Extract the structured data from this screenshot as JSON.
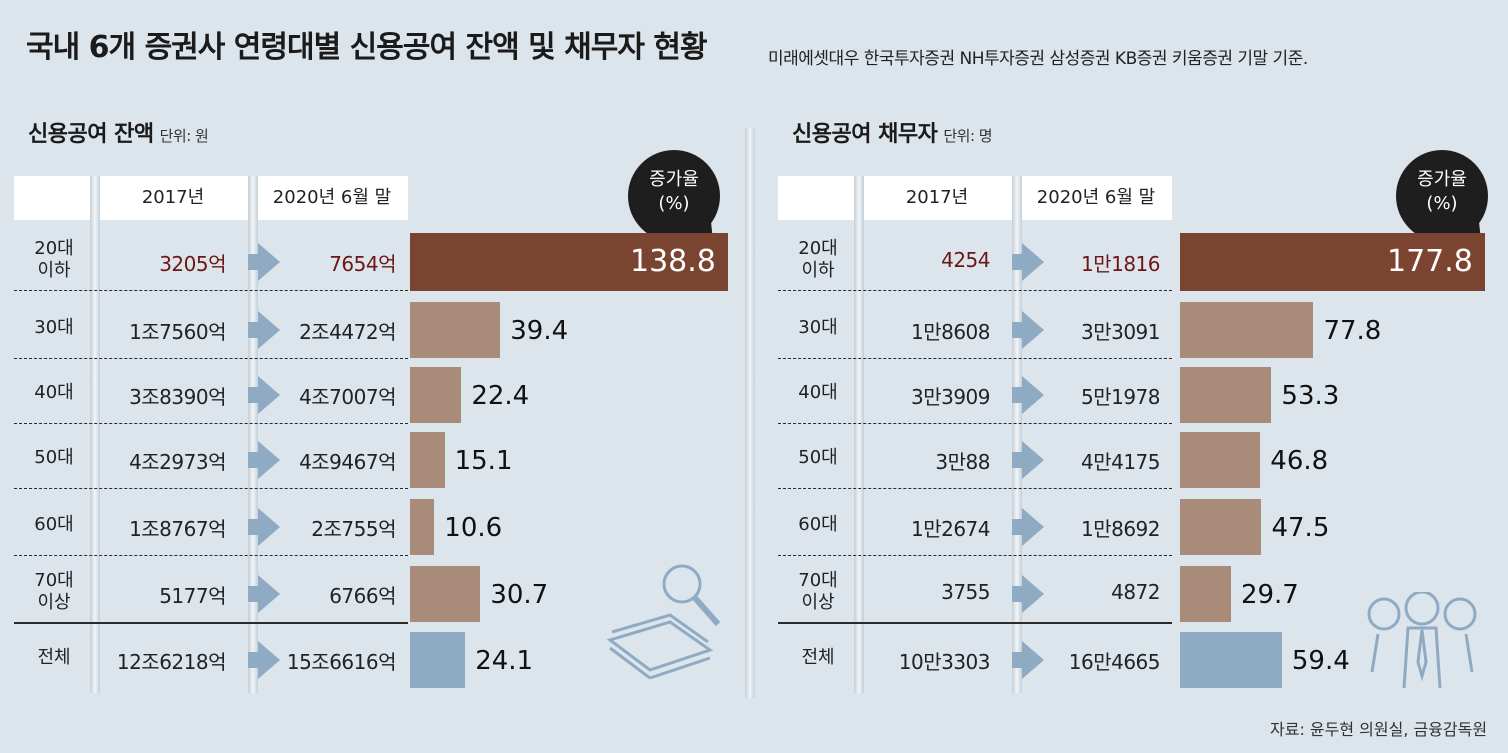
{
  "title": "국내 6개 증권사 연령대별 신용공여 잔액 및 채무자 현황",
  "subtitle": "미래에셋대우 한국투자증권 NH투자증권 삼성증권 KB증권 키움증권 기말 기준.",
  "source": "자료: 윤두현 의원실, 금융감독원",
  "colors": {
    "top_bar": "#7b4430",
    "age_bar": "#a88b79",
    "total_bar": "#8fabc4",
    "arrow": "#8fabc4",
    "background": "#dde5ec"
  },
  "bubble": {
    "line1": "증가율",
    "line2": "(%)"
  },
  "chart_data": [
    {
      "type": "bar",
      "title": "신용공여 잔액",
      "unit": "단위: 원",
      "columns": [
        "2017년",
        "2020년 6월 말"
      ],
      "categories": [
        "20대 이하",
        "30대",
        "40대",
        "50대",
        "60대",
        "70대 이상",
        "전체"
      ],
      "rows": [
        {
          "label_lines": [
            "20대",
            "이하"
          ],
          "v2017": "3205억",
          "v2020": "7654억",
          "growth": 138.8,
          "growth_text": "138.8",
          "highlight": true
        },
        {
          "label_lines": [
            "30대"
          ],
          "v2017": "1조7560억",
          "v2020": "2조4472억",
          "growth": 39.4,
          "growth_text": "39.4",
          "highlight": false
        },
        {
          "label_lines": [
            "40대"
          ],
          "v2017": "3조8390억",
          "v2020": "4조7007억",
          "growth": 22.4,
          "growth_text": "22.4",
          "highlight": false
        },
        {
          "label_lines": [
            "50대"
          ],
          "v2017": "4조2973억",
          "v2020": "4조9467억",
          "growth": 15.1,
          "growth_text": "15.1",
          "highlight": false
        },
        {
          "label_lines": [
            "60대"
          ],
          "v2017": "1조8767억",
          "v2020": "2조755억",
          "growth": 10.6,
          "growth_text": "10.6",
          "highlight": false
        },
        {
          "label_lines": [
            "70대",
            "이상"
          ],
          "v2017": "5177억",
          "v2020": "6766억",
          "growth": 30.7,
          "growth_text": "30.7",
          "highlight": false
        },
        {
          "label_lines": [
            "전체"
          ],
          "v2017": "12조6218억",
          "v2020": "15조6616억",
          "growth": 24.1,
          "growth_text": "24.1",
          "total": true
        }
      ],
      "series": [
        {
          "name": "증가율(%)",
          "values": [
            138.8,
            39.4,
            22.4,
            15.1,
            10.6,
            30.7,
            24.1
          ]
        }
      ],
      "xlim": [
        0,
        138.8
      ]
    },
    {
      "type": "bar",
      "title": "신용공여 채무자",
      "unit": "단위: 명",
      "columns": [
        "2017년",
        "2020년 6월 말"
      ],
      "categories": [
        "20대 이하",
        "30대",
        "40대",
        "50대",
        "60대",
        "70대 이상",
        "전체"
      ],
      "rows": [
        {
          "label_lines": [
            "20대",
            "이하"
          ],
          "v2017": "4254",
          "v2020": "1만1816",
          "growth": 177.8,
          "growth_text": "177.8",
          "highlight": true
        },
        {
          "label_lines": [
            "30대"
          ],
          "v2017": "1만8608",
          "v2020": "3만3091",
          "growth": 77.8,
          "growth_text": "77.8",
          "highlight": false
        },
        {
          "label_lines": [
            "40대"
          ],
          "v2017": "3만3909",
          "v2020": "5만1978",
          "growth": 53.3,
          "growth_text": "53.3",
          "highlight": false
        },
        {
          "label_lines": [
            "50대"
          ],
          "v2017": "3만88",
          "v2020": "4만4175",
          "growth": 46.8,
          "growth_text": "46.8",
          "highlight": false
        },
        {
          "label_lines": [
            "60대"
          ],
          "v2017": "1만2674",
          "v2020": "1만8692",
          "growth": 47.5,
          "growth_text": "47.5",
          "highlight": false
        },
        {
          "label_lines": [
            "70대",
            "이상"
          ],
          "v2017": "3755",
          "v2020": "4872",
          "growth": 29.7,
          "growth_text": "29.7",
          "highlight": false
        },
        {
          "label_lines": [
            "전체"
          ],
          "v2017": "10만3303",
          "v2020": "16만4665",
          "growth": 59.4,
          "growth_text": "59.4",
          "total": true
        }
      ],
      "series": [
        {
          "name": "증가율(%)",
          "values": [
            177.8,
            77.8,
            53.3,
            46.8,
            47.5,
            29.7,
            59.4
          ]
        }
      ],
      "xlim": [
        0,
        177.8
      ]
    }
  ]
}
